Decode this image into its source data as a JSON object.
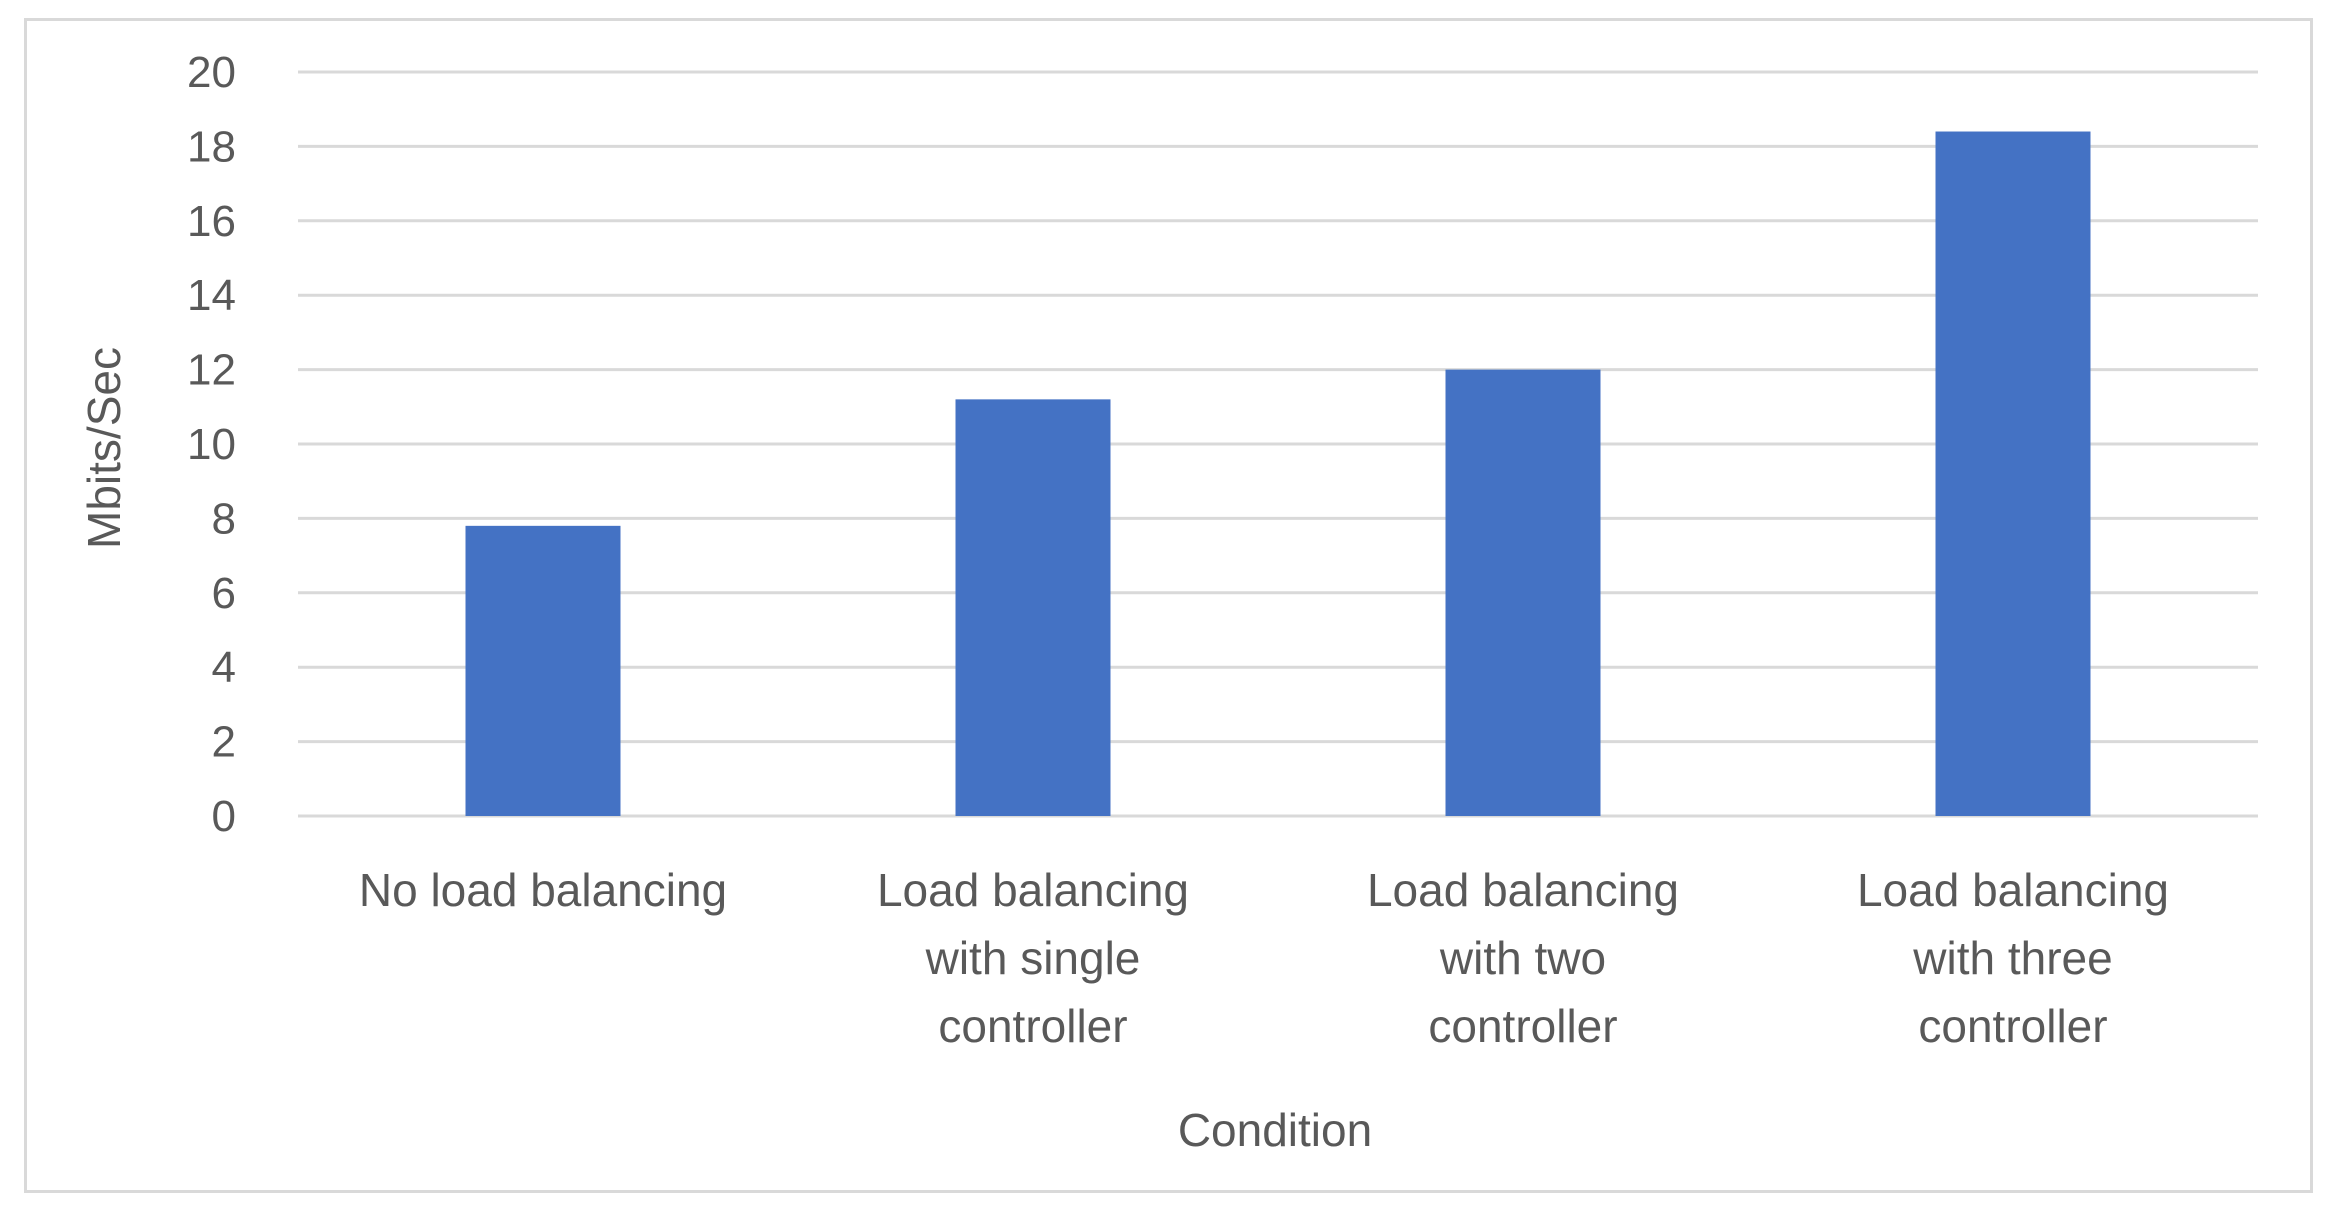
{
  "chart_data": {
    "type": "bar",
    "categories": [
      "No load balancing",
      "Load balancing with single controller",
      "Load balancing with two controller",
      "Load balancing with three controller"
    ],
    "category_label_lines": [
      [
        "No load balancing"
      ],
      [
        "Load balancing",
        "with single",
        "controller"
      ],
      [
        "Load balancing",
        "with two",
        "controller"
      ],
      [
        "Load balancing",
        "with three",
        "controller"
      ]
    ],
    "values": [
      7.8,
      11.2,
      12.0,
      18.4
    ],
    "title": "",
    "xlabel": "Condition",
    "ylabel": "Mbits/Sec",
    "ylim": [
      0,
      20
    ],
    "yticks": [
      0,
      2,
      4,
      6,
      8,
      10,
      12,
      14,
      16,
      18,
      20
    ],
    "grid": true,
    "legend": "none",
    "bar_color": "#4472c4",
    "grid_color": "#d9d9d9",
    "text_color": "#595959"
  }
}
